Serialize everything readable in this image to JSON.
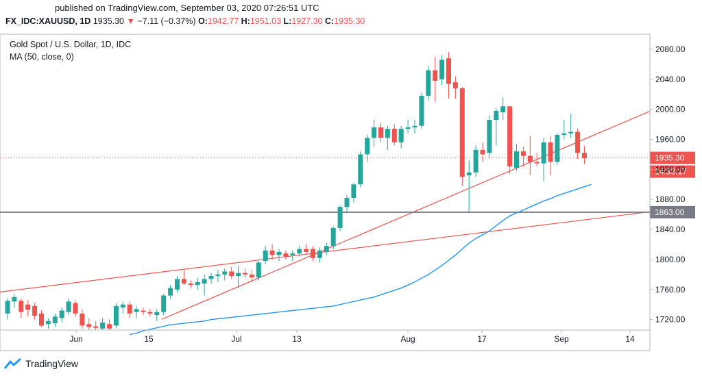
{
  "header": {
    "published": "published on TradingView.com, September 03, 2020 07:26:51 UTC",
    "symbol": "FX_IDC:XAUUSD, 1D",
    "last": "1935.30",
    "arrow": "▼",
    "change": "−7.11 (−0.37%)",
    "o_label": "O:",
    "o_value": "1942.77",
    "h_label": "H:",
    "h_value": "1951.03",
    "l_label": "L:",
    "l_value": "1927.30",
    "c_label": "C:",
    "c_value": "1935.30"
  },
  "footer": {
    "brand": "TradingView",
    "logo_icon": "tradingview-logo-icon"
  },
  "colors": {
    "up": "#26a69a",
    "down": "#ef5350",
    "ma": "#2196f3",
    "trend": "#ef5350",
    "hline": "#787b86"
  },
  "chart_data": {
    "type": "candlestick",
    "title": "Gold Spot / U.S. Dollar, 1D, IDC",
    "indicator": "MA (50, close, 0)",
    "x_ticks": [
      "Jun",
      "15",
      "Jul",
      "13",
      "Aug",
      "17",
      "Sep",
      "14"
    ],
    "y_ticks": [
      "2080.00",
      "2040.00",
      "2000.00",
      "1960.00",
      "1920.00",
      "1880.00",
      "1840.00",
      "1800.00",
      "1760.00",
      "1720.00"
    ],
    "ylim": [
      1706,
      2100
    ],
    "candles": [
      {
        "o": 1728,
        "h": 1748,
        "l": 1720,
        "c": 1745
      },
      {
        "o": 1744,
        "h": 1754,
        "l": 1736,
        "c": 1750
      },
      {
        "o": 1745,
        "h": 1748,
        "l": 1722,
        "c": 1730
      },
      {
        "o": 1740,
        "h": 1746,
        "l": 1724,
        "c": 1733
      },
      {
        "o": 1738,
        "h": 1742,
        "l": 1720,
        "c": 1725
      },
      {
        "o": 1728,
        "h": 1732,
        "l": 1710,
        "c": 1712
      },
      {
        "o": 1714,
        "h": 1722,
        "l": 1708,
        "c": 1718
      },
      {
        "o": 1715,
        "h": 1728,
        "l": 1710,
        "c": 1724
      },
      {
        "o": 1722,
        "h": 1736,
        "l": 1716,
        "c": 1732
      },
      {
        "o": 1730,
        "h": 1748,
        "l": 1726,
        "c": 1744
      },
      {
        "o": 1742,
        "h": 1746,
        "l": 1724,
        "c": 1728
      },
      {
        "o": 1728,
        "h": 1734,
        "l": 1708,
        "c": 1712
      },
      {
        "o": 1714,
        "h": 1722,
        "l": 1706,
        "c": 1710
      },
      {
        "o": 1711,
        "h": 1718,
        "l": 1706,
        "c": 1709
      },
      {
        "o": 1708,
        "h": 1722,
        "l": 1706,
        "c": 1716
      },
      {
        "o": 1714,
        "h": 1720,
        "l": 1706,
        "c": 1708
      },
      {
        "o": 1712,
        "h": 1742,
        "l": 1708,
        "c": 1738
      },
      {
        "o": 1736,
        "h": 1744,
        "l": 1728,
        "c": 1740
      },
      {
        "o": 1740,
        "h": 1744,
        "l": 1722,
        "c": 1728
      },
      {
        "o": 1730,
        "h": 1738,
        "l": 1722,
        "c": 1734
      },
      {
        "o": 1732,
        "h": 1736,
        "l": 1726,
        "c": 1730
      },
      {
        "o": 1730,
        "h": 1734,
        "l": 1724,
        "c": 1728
      },
      {
        "o": 1726,
        "h": 1734,
        "l": 1718,
        "c": 1730
      },
      {
        "o": 1730,
        "h": 1754,
        "l": 1726,
        "c": 1752
      },
      {
        "o": 1752,
        "h": 1766,
        "l": 1748,
        "c": 1762
      },
      {
        "o": 1760,
        "h": 1778,
        "l": 1756,
        "c": 1774
      },
      {
        "o": 1774,
        "h": 1786,
        "l": 1766,
        "c": 1768
      },
      {
        "o": 1768,
        "h": 1772,
        "l": 1762,
        "c": 1766
      },
      {
        "o": 1766,
        "h": 1776,
        "l": 1760,
        "c": 1770
      },
      {
        "o": 1768,
        "h": 1780,
        "l": 1752,
        "c": 1774
      },
      {
        "o": 1774,
        "h": 1782,
        "l": 1768,
        "c": 1778
      },
      {
        "o": 1778,
        "h": 1786,
        "l": 1770,
        "c": 1780
      },
      {
        "o": 1780,
        "h": 1788,
        "l": 1772,
        "c": 1784
      },
      {
        "o": 1784,
        "h": 1790,
        "l": 1774,
        "c": 1778
      },
      {
        "o": 1778,
        "h": 1792,
        "l": 1762,
        "c": 1782
      },
      {
        "o": 1782,
        "h": 1788,
        "l": 1776,
        "c": 1780
      },
      {
        "o": 1780,
        "h": 1786,
        "l": 1770,
        "c": 1776
      },
      {
        "o": 1776,
        "h": 1800,
        "l": 1772,
        "c": 1796
      },
      {
        "o": 1798,
        "h": 1818,
        "l": 1794,
        "c": 1812
      },
      {
        "o": 1812,
        "h": 1820,
        "l": 1800,
        "c": 1806
      },
      {
        "o": 1806,
        "h": 1814,
        "l": 1798,
        "c": 1810
      },
      {
        "o": 1808,
        "h": 1812,
        "l": 1800,
        "c": 1804
      },
      {
        "o": 1806,
        "h": 1812,
        "l": 1798,
        "c": 1808
      },
      {
        "o": 1808,
        "h": 1818,
        "l": 1804,
        "c": 1814
      },
      {
        "o": 1814,
        "h": 1820,
        "l": 1806,
        "c": 1810
      },
      {
        "o": 1814,
        "h": 1818,
        "l": 1798,
        "c": 1802
      },
      {
        "o": 1802,
        "h": 1816,
        "l": 1796,
        "c": 1812
      },
      {
        "o": 1810,
        "h": 1822,
        "l": 1806,
        "c": 1818
      },
      {
        "o": 1818,
        "h": 1844,
        "l": 1814,
        "c": 1842
      },
      {
        "o": 1842,
        "h": 1872,
        "l": 1838,
        "c": 1870
      },
      {
        "o": 1870,
        "h": 1886,
        "l": 1864,
        "c": 1882
      },
      {
        "o": 1882,
        "h": 1902,
        "l": 1876,
        "c": 1900
      },
      {
        "o": 1900,
        "h": 1944,
        "l": 1896,
        "c": 1940
      },
      {
        "o": 1940,
        "h": 1966,
        "l": 1930,
        "c": 1962
      },
      {
        "o": 1962,
        "h": 1986,
        "l": 1950,
        "c": 1976
      },
      {
        "o": 1976,
        "h": 1982,
        "l": 1956,
        "c": 1962
      },
      {
        "o": 1962,
        "h": 1978,
        "l": 1946,
        "c": 1974
      },
      {
        "o": 1974,
        "h": 1980,
        "l": 1952,
        "c": 1956
      },
      {
        "o": 1956,
        "h": 1978,
        "l": 1948,
        "c": 1974
      },
      {
        "o": 1974,
        "h": 1986,
        "l": 1968,
        "c": 1976
      },
      {
        "o": 1976,
        "h": 1986,
        "l": 1968,
        "c": 1978
      },
      {
        "o": 1978,
        "h": 2022,
        "l": 1974,
        "c": 2018
      },
      {
        "o": 2018,
        "h": 2058,
        "l": 2012,
        "c": 2052
      },
      {
        "o": 2052,
        "h": 2070,
        "l": 2010,
        "c": 2038
      },
      {
        "o": 2040,
        "h": 2072,
        "l": 2032,
        "c": 2066
      },
      {
        "o": 2068,
        "h": 2076,
        "l": 2014,
        "c": 2034
      },
      {
        "o": 2036,
        "h": 2044,
        "l": 2014,
        "c": 2028
      },
      {
        "o": 2028,
        "h": 2030,
        "l": 1898,
        "c": 1910
      },
      {
        "o": 1912,
        "h": 1932,
        "l": 1864,
        "c": 1916
      },
      {
        "o": 1916,
        "h": 1952,
        "l": 1910,
        "c": 1946
      },
      {
        "o": 1946,
        "h": 1956,
        "l": 1930,
        "c": 1940
      },
      {
        "o": 1942,
        "h": 1992,
        "l": 1936,
        "c": 1986
      },
      {
        "o": 1986,
        "h": 2002,
        "l": 1952,
        "c": 1998
      },
      {
        "o": 1996,
        "h": 2016,
        "l": 1986,
        "c": 2004
      },
      {
        "o": 2004,
        "h": 2004,
        "l": 1914,
        "c": 1924
      },
      {
        "o": 1922,
        "h": 1954,
        "l": 1918,
        "c": 1944
      },
      {
        "o": 1944,
        "h": 1950,
        "l": 1924,
        "c": 1938
      },
      {
        "o": 1938,
        "h": 1964,
        "l": 1912,
        "c": 1930
      },
      {
        "o": 1930,
        "h": 1942,
        "l": 1924,
        "c": 1928
      },
      {
        "o": 1928,
        "h": 1962,
        "l": 1904,
        "c": 1956
      },
      {
        "o": 1956,
        "h": 1964,
        "l": 1912,
        "c": 1930
      },
      {
        "o": 1930,
        "h": 1968,
        "l": 1926,
        "c": 1966
      },
      {
        "o": 1966,
        "h": 1986,
        "l": 1960,
        "c": 1968
      },
      {
        "o": 1968,
        "h": 1994,
        "l": 1962,
        "c": 1970
      },
      {
        "o": 1970,
        "h": 1974,
        "l": 1934,
        "c": 1942
      },
      {
        "o": 1942,
        "h": 1951,
        "l": 1927,
        "c": 1935
      }
    ],
    "ma_50": [
      1700,
      1702,
      1705,
      1707,
      1709,
      1711,
      1713,
      1714,
      1715,
      1716,
      1717,
      1718,
      1720,
      1721,
      1722,
      1723,
      1724,
      1725,
      1726,
      1727,
      1728,
      1729,
      1730,
      1731,
      1732,
      1733,
      1734,
      1735,
      1736,
      1737,
      1738,
      1740,
      1742,
      1744,
      1746,
      1748,
      1750,
      1753,
      1756,
      1759,
      1762,
      1766,
      1770,
      1775,
      1780,
      1786,
      1792,
      1799,
      1806,
      1814,
      1822,
      1828,
      1833,
      1838,
      1845,
      1852,
      1858,
      1862,
      1866,
      1870,
      1874,
      1878,
      1881,
      1885,
      1888,
      1891,
      1894,
      1897,
      1900
    ],
    "trendline_1": {
      "from": [
        0,
        1758
      ],
      "to": [
        87,
        1855
      ]
    },
    "trendline_2": {
      "from": [
        19,
        1706
      ],
      "to": [
        87,
        1968
      ]
    },
    "hline": 1863,
    "last_price": 1935.3,
    "price_labels": {
      "last": "1935.30",
      "countdown": "14:33:17",
      "hline": "1863.00"
    }
  }
}
